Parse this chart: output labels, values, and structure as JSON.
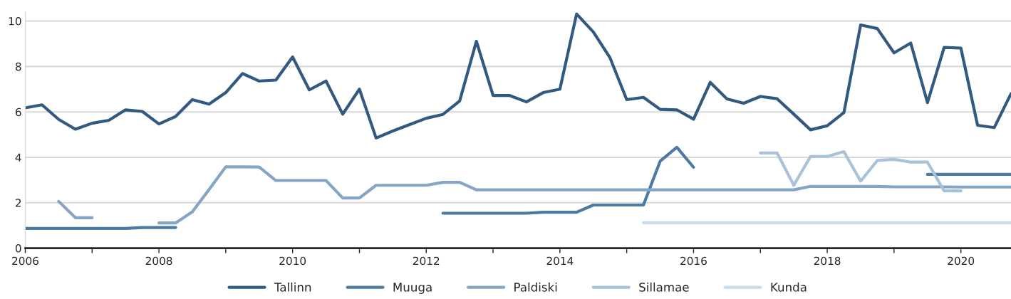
{
  "chart_data": {
    "type": "line",
    "x": [
      2006,
      2006.25,
      2006.5,
      2006.75,
      2007,
      2007.25,
      2007.5,
      2007.75,
      2008,
      2008.25,
      2008.5,
      2008.75,
      2009,
      2009.25,
      2009.5,
      2009.75,
      2010,
      2010.25,
      2010.5,
      2010.75,
      2011,
      2011.25,
      2011.5,
      2011.75,
      2012,
      2012.25,
      2012.5,
      2012.75,
      2013,
      2013.25,
      2013.5,
      2013.75,
      2014,
      2014.25,
      2014.5,
      2014.75,
      2015,
      2015.25,
      2015.5,
      2015.75,
      2016,
      2016.25,
      2016.5,
      2016.75,
      2017,
      2017.25,
      2017.5,
      2017.75,
      2018,
      2018.25,
      2018.5,
      2018.75,
      2019,
      2019.25,
      2019.5,
      2019.75,
      2020,
      2020.25,
      2020.5,
      2020.75
    ],
    "series": [
      {
        "name": "Tallinn",
        "color": "#325a80",
        "values": [
          6.18,
          6.31,
          5.67,
          5.24,
          5.5,
          5.63,
          6.09,
          6.02,
          5.47,
          5.8,
          6.54,
          6.34,
          6.85,
          7.69,
          7.36,
          7.4,
          8.42,
          6.97,
          7.36,
          5.9,
          7.0,
          4.85,
          5.16,
          5.44,
          5.72,
          5.89,
          6.48,
          9.11,
          6.72,
          6.72,
          6.44,
          6.85,
          7.0,
          10.31,
          9.52,
          8.38,
          6.54,
          6.64,
          6.11,
          6.09,
          5.68,
          7.3,
          6.57,
          6.38,
          6.68,
          6.58,
          5.9,
          5.21,
          5.39,
          5.97,
          9.83,
          9.67,
          8.6,
          9.03,
          6.41,
          8.84,
          8.81,
          5.41,
          5.31,
          6.8
        ]
      },
      {
        "name": "Muuga",
        "color": "#4d7aa3",
        "values": [
          0.87,
          0.87,
          0.87,
          0.87,
          0.87,
          0.87,
          0.87,
          0.91,
          0.91,
          0.91,
          null,
          null,
          null,
          null,
          null,
          null,
          null,
          null,
          null,
          null,
          null,
          null,
          null,
          null,
          null,
          1.54,
          1.54,
          1.54,
          1.54,
          1.54,
          1.54,
          1.58,
          1.58,
          1.58,
          1.9,
          1.9,
          1.9,
          1.9,
          3.83,
          4.44,
          3.56,
          null,
          null,
          null,
          null,
          null,
          null,
          null,
          null,
          null,
          null,
          null,
          null,
          null,
          3.25,
          3.25,
          3.25,
          3.25,
          3.25,
          3.25
        ]
      },
      {
        "name": "Paldiski",
        "color": "#85a5c6",
        "values": [
          null,
          null,
          2.06,
          1.34,
          1.34,
          null,
          null,
          null,
          1.11,
          1.11,
          1.6,
          2.58,
          3.58,
          3.58,
          3.57,
          2.98,
          2.98,
          2.98,
          2.98,
          2.21,
          2.21,
          2.77,
          2.77,
          2.77,
          2.77,
          2.9,
          2.9,
          2.57,
          2.57,
          2.57,
          2.57,
          2.57,
          2.57,
          2.57,
          2.57,
          2.57,
          2.57,
          2.57,
          2.57,
          2.57,
          2.57,
          2.57,
          2.57,
          2.57,
          2.57,
          2.57,
          2.57,
          2.72,
          2.72,
          2.72,
          2.72,
          2.72,
          2.7,
          2.7,
          2.7,
          2.7,
          2.69,
          2.69,
          2.69,
          2.69
        ]
      },
      {
        "name": "Sillamae",
        "color": "#a9c1d9",
        "values": [
          null,
          null,
          null,
          null,
          null,
          null,
          null,
          null,
          null,
          null,
          null,
          null,
          null,
          null,
          null,
          null,
          null,
          null,
          null,
          null,
          null,
          null,
          null,
          null,
          null,
          null,
          null,
          null,
          null,
          null,
          null,
          null,
          null,
          null,
          null,
          null,
          null,
          null,
          null,
          null,
          null,
          null,
          null,
          null,
          4.19,
          4.19,
          2.77,
          4.04,
          4.04,
          4.25,
          2.95,
          3.86,
          3.91,
          3.79,
          3.79,
          2.52,
          2.52,
          null,
          null,
          null
        ]
      },
      {
        "name": "Kunda",
        "color": "#c6dbee",
        "values": [
          null,
          null,
          null,
          null,
          null,
          null,
          null,
          null,
          null,
          null,
          null,
          null,
          null,
          null,
          null,
          null,
          null,
          null,
          null,
          null,
          null,
          null,
          null,
          null,
          null,
          null,
          null,
          null,
          null,
          null,
          null,
          null,
          null,
          null,
          null,
          null,
          null,
          1.12,
          1.12,
          1.12,
          1.12,
          1.12,
          1.12,
          1.12,
          1.12,
          1.12,
          1.12,
          1.12,
          1.12,
          1.12,
          1.12,
          1.12,
          1.12,
          1.12,
          1.12,
          1.12,
          1.12,
          1.12,
          1.12,
          1.12
        ]
      }
    ],
    "xlim": [
      2006,
      2020.75
    ],
    "xticks": [
      2006,
      {
        "value": 2007,
        "label": null
      },
      2008,
      {
        "value": 2009,
        "label": null
      },
      2010,
      {
        "value": 2011,
        "label": null
      },
      2012,
      {
        "value": 2013,
        "label": null
      },
      2014,
      {
        "value": 2015,
        "label": null
      },
      2016,
      {
        "value": 2017,
        "label": null
      },
      2018,
      {
        "value": 2019,
        "label": null
      },
      2020
    ],
    "ylim": [
      0,
      10.4
    ],
    "yticks": [
      0,
      2,
      4,
      6,
      8,
      10
    ],
    "grid": "y",
    "legend": "bottom",
    "line_style": "solid"
  }
}
